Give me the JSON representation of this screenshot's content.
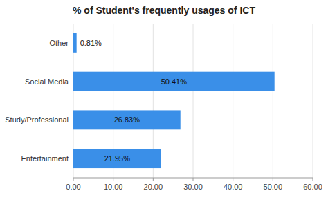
{
  "chart_data": {
    "type": "bar",
    "orientation": "horizontal",
    "title": "% of Student's frequently usages of ICT",
    "categories": [
      "Entertainment",
      "Study/Professional",
      "Social Media",
      "Other"
    ],
    "values": [
      21.95,
      26.83,
      50.41,
      0.81
    ],
    "value_labels": [
      "21.95%",
      "26.83%",
      "50.41%",
      "0.81%"
    ],
    "color": "#3a8fe8",
    "xlim": [
      0,
      60
    ],
    "xticks": [
      {
        "value": 0,
        "label": "0.00"
      },
      {
        "value": 10,
        "label": "10.00"
      },
      {
        "value": 20,
        "label": "20.00"
      },
      {
        "value": 30,
        "label": "30.00"
      },
      {
        "value": 40,
        "label": "40.00"
      },
      {
        "value": 50,
        "label": "50.00"
      },
      {
        "value": 60,
        "label": "60.00"
      }
    ],
    "grid": true,
    "data_labels": true
  }
}
